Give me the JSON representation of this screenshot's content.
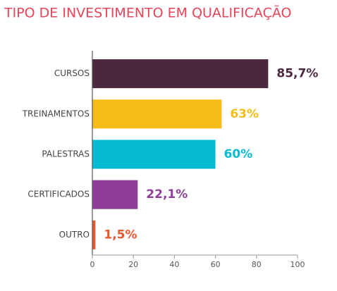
{
  "chart_data": {
    "type": "bar",
    "orientation": "horizontal",
    "title": "TIPO DE INVESTIMENTO EM QUALIFICAÇÃO",
    "categories": [
      "CURSOS",
      "TREINAMENTOS",
      "PALESTRAS",
      "CERTIFICADOS",
      "OUTRO"
    ],
    "values": [
      85.7,
      63,
      60,
      22.1,
      1.5
    ],
    "value_labels": [
      "85,7%",
      "63%",
      "60%",
      "22,1%",
      "1,5%"
    ],
    "colors": [
      "#4b2840",
      "#f7bd16",
      "#05bad2",
      "#8e3e98",
      "#e8562c"
    ],
    "xlim": [
      0,
      100
    ],
    "xticks": [
      0,
      20,
      40,
      60,
      80,
      100
    ],
    "title_color": "#e8445a"
  }
}
